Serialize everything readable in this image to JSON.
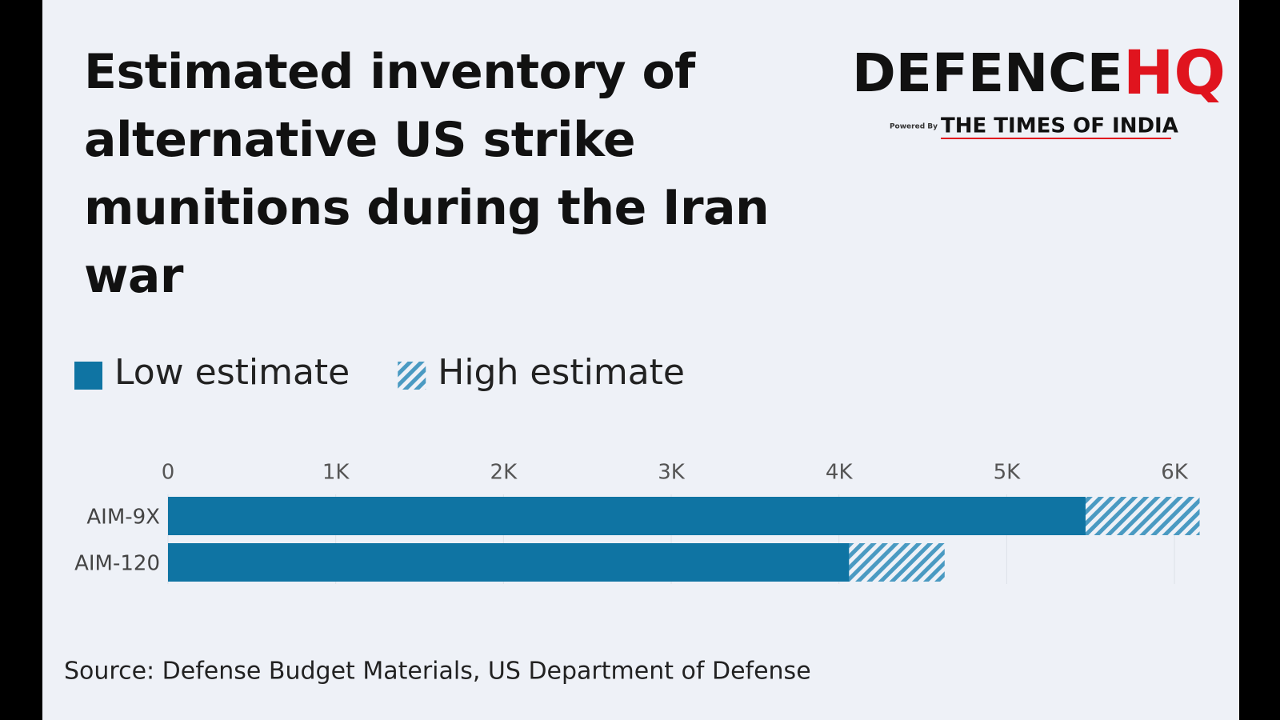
{
  "chart_data": {
    "type": "bar",
    "orientation": "horizontal",
    "title": "Estimated inventory of alternative US strike munitions during the Iran war",
    "brand": {
      "name": "DEFENCE",
      "highlight": "HQ",
      "powered_by": "Powered By",
      "partner": "THE TIMES OF INDIA"
    },
    "categories": [
      "AIM-9X",
      "AIM-120"
    ],
    "series": [
      {
        "name": "Low estimate",
        "color": "#0f74a3",
        "pattern": "solid",
        "values": [
          5470,
          4060
        ]
      },
      {
        "name": "High estimate",
        "color": "#4a9ac2",
        "pattern": "hatched",
        "values": [
          6150,
          4630
        ]
      }
    ],
    "xlim": [
      0,
      6200
    ],
    "xticks": [
      0,
      {
        "value": 1000,
        "label": "1K"
      },
      {
        "value": 2000,
        "label": "2K"
      },
      {
        "value": 3000,
        "label": "3K"
      },
      {
        "value": 4000,
        "label": "4K"
      },
      {
        "value": 5000,
        "label": "5K"
      },
      {
        "value": 6000,
        "label": "6K"
      }
    ],
    "grid": true,
    "source": "Source: Defense Budget Materials, US Department of Defense"
  }
}
